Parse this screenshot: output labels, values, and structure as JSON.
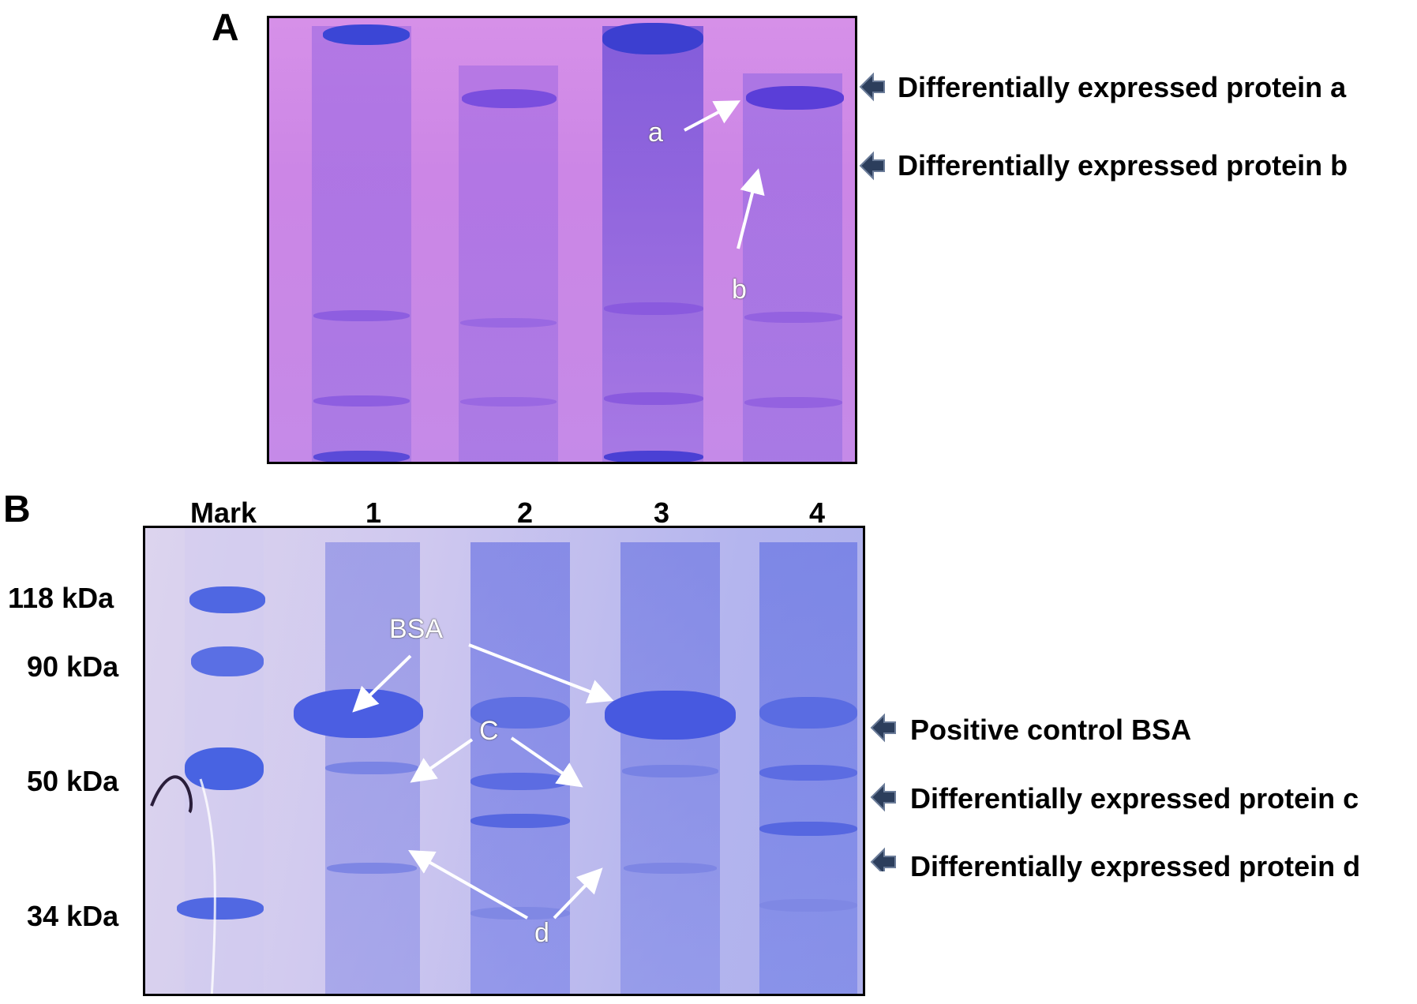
{
  "panel_a": {
    "letter": "A",
    "arrow_labels": [
      "a",
      "b"
    ],
    "side_labels": [
      "Differentially expressed protein a",
      "Differentially expressed protein b"
    ]
  },
  "panel_b": {
    "letter": "B",
    "lane_headers": [
      "Mark",
      "1",
      "2",
      "3",
      "4"
    ],
    "marker_labels": [
      "118 kDa",
      "90 kDa",
      "50 kDa",
      "34 kDa"
    ],
    "arrow_labels": [
      "BSA",
      "C",
      "d"
    ],
    "side_labels": [
      "Positive control BSA",
      "Differentially expressed protein c",
      "Differentially expressed protein d"
    ]
  },
  "colors": {
    "gel_a_background": "#cc86e6",
    "gel_a_band": "#6a3fd8",
    "gel_b_background": "#c4c2ee",
    "gel_b_band": "#4f5ee6",
    "annotation_arrow": "#ffffff",
    "side_arrow": "#2c3e5c"
  },
  "icons": [
    "white-arrow-icon",
    "dark-left-arrow-icon"
  ]
}
